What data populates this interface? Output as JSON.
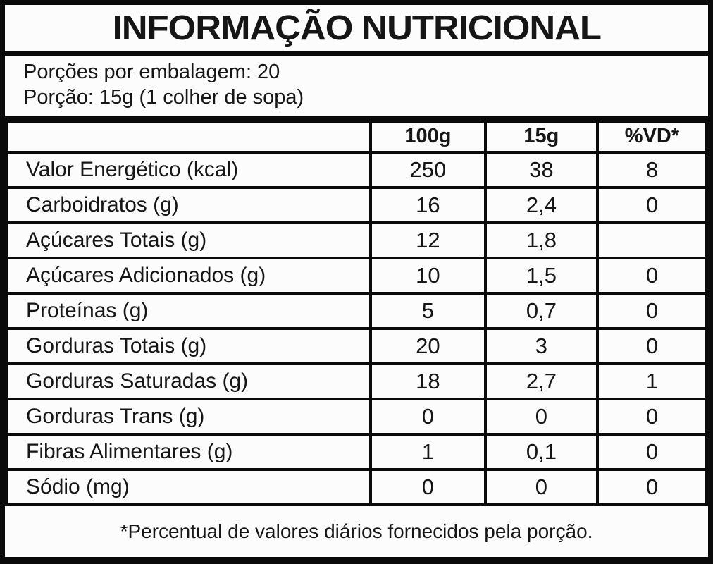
{
  "title": "INFORMAÇÃO NUTRICIONAL",
  "serving_info": {
    "servings_per_package": "Porções por embalagem: 20",
    "serving_size": "Porção: 15g (1 colher de sopa)"
  },
  "table": {
    "columns": {
      "label": "",
      "per_100g": "100g",
      "per_serving": "15g",
      "daily_value": "%VD*"
    },
    "rows": [
      {
        "label": "Valor Energético (kcal)",
        "per_100g": "250",
        "per_serving": "38",
        "daily_value": "8"
      },
      {
        "label": "Carboidratos (g)",
        "per_100g": "16",
        "per_serving": "2,4",
        "daily_value": "0"
      },
      {
        "label": "Açúcares Totais (g)",
        "per_100g": "12",
        "per_serving": "1,8",
        "daily_value": ""
      },
      {
        "label": "Açúcares Adicionados (g)",
        "per_100g": "10",
        "per_serving": "1,5",
        "daily_value": "0"
      },
      {
        "label": "Proteínas (g)",
        "per_100g": "5",
        "per_serving": "0,7",
        "daily_value": "0"
      },
      {
        "label": "Gorduras Totais (g)",
        "per_100g": "20",
        "per_serving": "3",
        "daily_value": "0"
      },
      {
        "label": "Gorduras Saturadas (g)",
        "per_100g": "18",
        "per_serving": "2,7",
        "daily_value": "1"
      },
      {
        "label": "Gorduras Trans (g)",
        "per_100g": "0",
        "per_serving": "0",
        "daily_value": "0"
      },
      {
        "label": "Fibras Alimentares (g)",
        "per_100g": "1",
        "per_serving": "0,1",
        "daily_value": "0"
      },
      {
        "label": "Sódio (mg)",
        "per_100g": "0",
        "per_serving": "0",
        "daily_value": "0"
      }
    ]
  },
  "footnote": "*Percentual de valores diários fornecidos pela porção.",
  "colors": {
    "border": "#0a0a0a",
    "background": "#fcfcfc",
    "text": "#161616"
  }
}
